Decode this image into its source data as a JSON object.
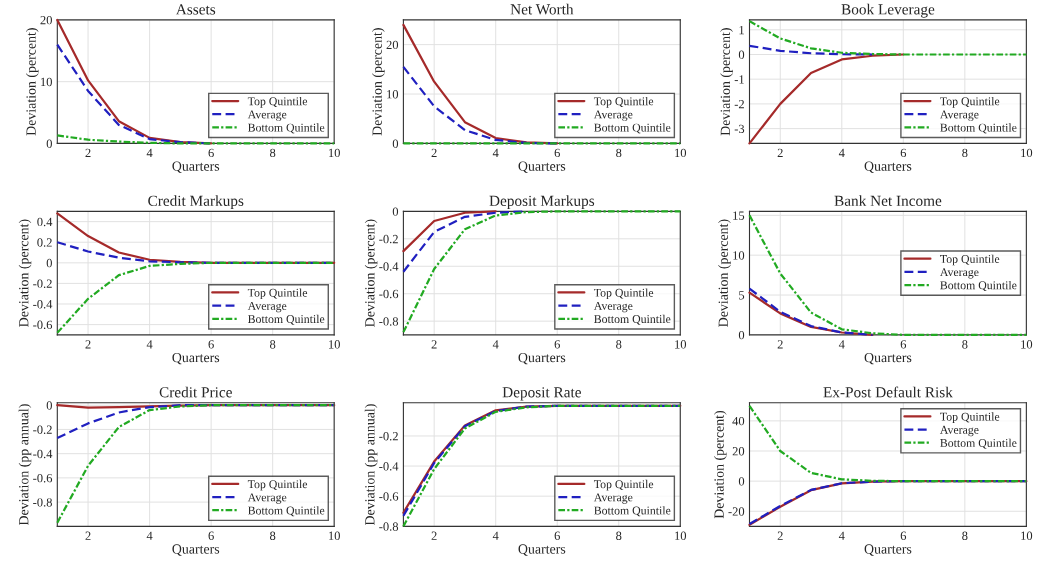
{
  "chart_data": [
    {
      "type": "line",
      "title": "Assets",
      "xlabel": "Quarters",
      "ylabel": "Deviation (percent)",
      "x": [
        1,
        2,
        3,
        4,
        5,
        6,
        7,
        8,
        9,
        10
      ],
      "xlim": [
        1,
        10
      ],
      "xticks": [
        2,
        4,
        6,
        8,
        10
      ],
      "ylim": [
        0,
        20
      ],
      "yticks": [
        0,
        10,
        20
      ],
      "grid": true,
      "legend": "bottom right",
      "series": [
        {
          "name": "Top Quintile",
          "color": "#a52a2a",
          "line_style": "solid",
          "values": [
            20,
            10.2,
            3.6,
            0.9,
            0.2,
            0,
            null,
            null,
            null,
            null
          ]
        },
        {
          "name": "Average",
          "color": "#2020c0",
          "line_style": "dashed",
          "values": [
            16,
            8.5,
            3,
            0.7,
            0.2,
            0,
            null,
            null,
            null,
            null
          ]
        },
        {
          "name": "Bottom Quintile",
          "color": "#22aa22",
          "line_style": "dotted",
          "values": [
            1.3,
            0.6,
            0.3,
            0.1,
            0,
            0,
            0,
            0,
            0,
            0
          ]
        }
      ]
    },
    {
      "type": "line",
      "title": "Net Worth",
      "xlabel": "Quarters",
      "ylabel": "Deviation (percent)",
      "x": [
        1,
        2,
        3,
        4,
        5,
        6,
        7,
        8,
        9,
        10
      ],
      "xlim": [
        1,
        10
      ],
      "xticks": [
        2,
        4,
        6,
        8,
        10
      ],
      "ylim": [
        0,
        25
      ],
      "yticks": [
        0,
        10,
        20
      ],
      "grid": true,
      "legend": "bottom right",
      "series": [
        {
          "name": "Top Quintile",
          "color": "#a52a2a",
          "line_style": "solid",
          "values": [
            24,
            12.5,
            4.3,
            1.1,
            0.2,
            0,
            null,
            null,
            null,
            null
          ]
        },
        {
          "name": "Average",
          "color": "#2020c0",
          "line_style": "dashed",
          "values": [
            15.5,
            7.5,
            2.7,
            0.7,
            0.1,
            0,
            null,
            null,
            null,
            null
          ]
        },
        {
          "name": "Bottom Quintile",
          "color": "#22aa22",
          "line_style": "dotted",
          "values": [
            0,
            0,
            0,
            0,
            0,
            0,
            0,
            0,
            0,
            0
          ]
        }
      ]
    },
    {
      "type": "line",
      "title": "Book Leverage",
      "xlabel": "Quarters",
      "ylabel": "Deviation (percent)",
      "x": [
        1,
        2,
        3,
        4,
        5,
        6,
        7,
        8,
        9,
        10
      ],
      "xlim": [
        1,
        10
      ],
      "xticks": [
        2,
        4,
        6,
        8,
        10
      ],
      "ylim": [
        -3.6,
        1.4
      ],
      "yticks": [
        -3,
        -2,
        -1,
        0,
        1
      ],
      "grid": true,
      "legend": "bottom right",
      "series": [
        {
          "name": "Top Quintile",
          "color": "#a52a2a",
          "line_style": "solid",
          "values": [
            -3.6,
            -2.0,
            -0.75,
            -0.2,
            -0.05,
            0,
            null,
            null,
            null,
            null
          ]
        },
        {
          "name": "Average",
          "color": "#2020c0",
          "line_style": "dashed",
          "values": [
            0.35,
            0.15,
            0.05,
            0.01,
            0,
            null,
            null,
            null,
            null,
            null
          ]
        },
        {
          "name": "Bottom Quintile",
          "color": "#22aa22",
          "line_style": "dotted",
          "values": [
            1.35,
            0.65,
            0.25,
            0.07,
            0.02,
            0,
            0,
            0,
            0,
            0
          ]
        }
      ]
    },
    {
      "type": "line",
      "title": "Credit Markups",
      "xlabel": "Quarters",
      "ylabel": "Deviation (percent)",
      "x": [
        1,
        2,
        3,
        4,
        5,
        6,
        7,
        8,
        9,
        10
      ],
      "xlim": [
        1,
        10
      ],
      "xticks": [
        2,
        4,
        6,
        8,
        10
      ],
      "ylim": [
        -0.7,
        0.5
      ],
      "yticks": [
        -0.6,
        -0.4,
        -0.2,
        0,
        0.2,
        0.4
      ],
      "grid": true,
      "legend": "bottom right",
      "series": [
        {
          "name": "Top Quintile",
          "color": "#a52a2a",
          "line_style": "solid",
          "values": [
            0.48,
            0.26,
            0.1,
            0.03,
            0.01,
            0,
            0,
            0,
            0,
            0
          ]
        },
        {
          "name": "Average",
          "color": "#2020c0",
          "line_style": "dashed",
          "values": [
            0.2,
            0.11,
            0.05,
            0.015,
            0.005,
            0,
            0,
            0,
            0,
            0
          ]
        },
        {
          "name": "Bottom Quintile",
          "color": "#22aa22",
          "line_style": "dotted",
          "values": [
            -0.68,
            -0.35,
            -0.12,
            -0.03,
            -0.01,
            0,
            0,
            0,
            0,
            0
          ]
        }
      ]
    },
    {
      "type": "line",
      "title": "Deposit Markups",
      "xlabel": "Quarters",
      "ylabel": "Deviation (percent)",
      "x": [
        1,
        2,
        3,
        4,
        5,
        6,
        7,
        8,
        9,
        10
      ],
      "xlim": [
        1,
        10
      ],
      "xticks": [
        2,
        4,
        6,
        8,
        10
      ],
      "ylim": [
        -0.9,
        0
      ],
      "yticks": [
        -0.8,
        -0.6,
        -0.4,
        -0.2,
        0
      ],
      "grid": true,
      "legend": "bottom right",
      "series": [
        {
          "name": "Top Quintile",
          "color": "#a52a2a",
          "line_style": "solid",
          "values": [
            -0.29,
            -0.07,
            -0.01,
            0,
            null,
            null,
            null,
            null,
            null,
            null
          ]
        },
        {
          "name": "Average",
          "color": "#2020c0",
          "line_style": "dashed",
          "values": [
            -0.44,
            -0.15,
            -0.04,
            -0.01,
            0,
            null,
            null,
            null,
            null,
            null
          ]
        },
        {
          "name": "Bottom Quintile",
          "color": "#22aa22",
          "line_style": "dotted",
          "values": [
            -0.88,
            -0.42,
            -0.13,
            -0.03,
            -0.005,
            0,
            0,
            0,
            0,
            0
          ]
        }
      ]
    },
    {
      "type": "line",
      "title": "Bank Net Income",
      "xlabel": "Quarters",
      "ylabel": "Deviation (percent)",
      "x": [
        1,
        2,
        3,
        4,
        5,
        6,
        7,
        8,
        9,
        10
      ],
      "xlim": [
        1,
        10
      ],
      "xticks": [
        2,
        4,
        6,
        8,
        10
      ],
      "ylim": [
        0,
        15.5
      ],
      "yticks": [
        0,
        5,
        10,
        15
      ],
      "grid": true,
      "legend": "right",
      "series": [
        {
          "name": "Top Quintile",
          "color": "#a52a2a",
          "line_style": "solid",
          "values": [
            5.3,
            2.7,
            1.0,
            0.3,
            0,
            null,
            null,
            null,
            null,
            null
          ]
        },
        {
          "name": "Average",
          "color": "#2020c0",
          "line_style": "dashed",
          "values": [
            5.8,
            2.9,
            1.1,
            0.3,
            0,
            null,
            null,
            null,
            null,
            null
          ]
        },
        {
          "name": "Bottom Quintile",
          "color": "#22aa22",
          "line_style": "dotted",
          "values": [
            15,
            7.7,
            2.8,
            0.7,
            0.2,
            0,
            0,
            0,
            0,
            0
          ]
        }
      ]
    },
    {
      "type": "line",
      "title": "Credit Price",
      "xlabel": "Quarters",
      "ylabel": "Deviation (pp annual)",
      "x": [
        1,
        2,
        3,
        4,
        5,
        6,
        7,
        8,
        9,
        10
      ],
      "xlim": [
        1,
        10
      ],
      "xticks": [
        2,
        4,
        6,
        8,
        10
      ],
      "ylim": [
        -1,
        0.02
      ],
      "yticks": [
        -0.8,
        -0.6,
        -0.4,
        -0.2,
        0
      ],
      "grid": true,
      "legend": "bottom right",
      "series": [
        {
          "name": "Top Quintile",
          "color": "#a52a2a",
          "line_style": "solid",
          "values": [
            0,
            -0.02,
            -0.015,
            -0.01,
            -0.003,
            0,
            0,
            0,
            0,
            0
          ]
        },
        {
          "name": "Average",
          "color": "#2020c0",
          "line_style": "dashed",
          "values": [
            -0.27,
            -0.15,
            -0.06,
            -0.015,
            0,
            0,
            0,
            0,
            0,
            0
          ]
        },
        {
          "name": "Bottom Quintile",
          "color": "#22aa22",
          "line_style": "dotted",
          "values": [
            -0.97,
            -0.5,
            -0.18,
            -0.04,
            -0.01,
            0,
            0,
            0,
            0,
            0
          ]
        }
      ]
    },
    {
      "type": "line",
      "title": "Deposit Rate",
      "xlabel": "Quarters",
      "ylabel": "Deviation (pp annual)",
      "x": [
        1,
        2,
        3,
        4,
        5,
        6,
        7,
        8,
        9,
        10
      ],
      "xlim": [
        1,
        10
      ],
      "xticks": [
        2,
        4,
        6,
        8,
        10
      ],
      "ylim": [
        -0.8,
        0.02
      ],
      "yticks": [
        -0.8,
        -0.6,
        -0.4,
        -0.2
      ],
      "grid": true,
      "legend": "bottom right",
      "series": [
        {
          "name": "Top Quintile",
          "color": "#a52a2a",
          "line_style": "solid",
          "values": [
            -0.71,
            -0.37,
            -0.13,
            -0.03,
            -0.005,
            0,
            0,
            0,
            0,
            0
          ]
        },
        {
          "name": "Average",
          "color": "#2020c0",
          "line_style": "dashed",
          "values": [
            -0.73,
            -0.38,
            -0.135,
            -0.035,
            -0.005,
            0,
            0,
            0,
            0,
            0
          ]
        },
        {
          "name": "Bottom Quintile",
          "color": "#22aa22",
          "line_style": "dotted",
          "values": [
            -0.8,
            -0.42,
            -0.15,
            -0.04,
            -0.01,
            0,
            0,
            0,
            0,
            0
          ]
        }
      ]
    },
    {
      "type": "line",
      "title": "Ex-Post Default Risk",
      "xlabel": "Quarters",
      "ylabel": "Deviation (percent)",
      "x": [
        1,
        2,
        3,
        4,
        5,
        6,
        7,
        8,
        9,
        10
      ],
      "xlim": [
        1,
        10
      ],
      "xticks": [
        2,
        4,
        6,
        8,
        10
      ],
      "ylim": [
        -30,
        52
      ],
      "yticks": [
        -20,
        0,
        20,
        40
      ],
      "grid": true,
      "legend": "top right",
      "series": [
        {
          "name": "Top Quintile",
          "color": "#a52a2a",
          "line_style": "solid",
          "values": [
            -29,
            -17,
            -6,
            -1.5,
            -0.3,
            0,
            0,
            0,
            0,
            0
          ]
        },
        {
          "name": "Average",
          "color": "#2020c0",
          "line_style": "dashed",
          "values": [
            -28.5,
            -16.5,
            -5.8,
            -1.4,
            -0.3,
            0,
            0,
            0,
            0,
            0
          ]
        },
        {
          "name": "Bottom Quintile",
          "color": "#22aa22",
          "line_style": "dotted",
          "values": [
            50,
            20,
            5.5,
            1.2,
            0.2,
            0,
            0,
            0,
            0,
            0
          ]
        }
      ]
    }
  ]
}
